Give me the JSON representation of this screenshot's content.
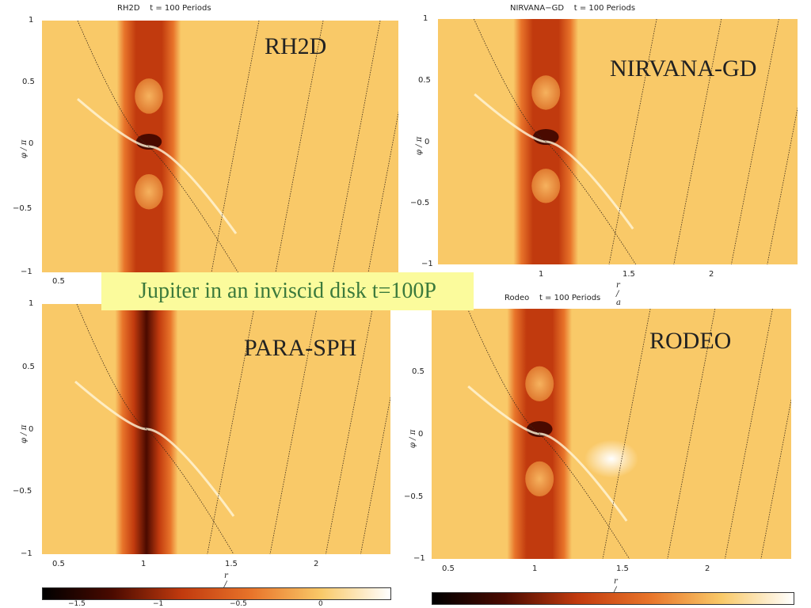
{
  "banner": "Jupiter in an inviscid disk t=100P",
  "panels": [
    {
      "id": "rh2d",
      "title": "RH2D    t = 100 Periods",
      "code_label": "RH2D",
      "yticks": [
        "1",
        "0.5",
        "0",
        "−0.5",
        "−1"
      ],
      "ylabel": "φ / π",
      "xticks": [
        "0.5"
      ],
      "xlabel": "",
      "features": {
        "planet_blobs": true,
        "white_spot": false
      }
    },
    {
      "id": "nirvana",
      "title": "NIRVANA−GD    t = 100 Periods",
      "code_label": "NIRVANA-GD",
      "yticks": [
        "1",
        "0.5",
        "0",
        "−0.5",
        "−1"
      ],
      "ylabel": "φ / π",
      "xticks": [
        "1",
        "1.5",
        "2"
      ],
      "xlabel": "r / a",
      "features": {
        "planet_blobs": true,
        "white_spot": false
      }
    },
    {
      "id": "parasph",
      "title": "",
      "code_label": "PARA-SPH",
      "yticks": [
        "1",
        "0.5",
        "0",
        "−0.5",
        "−1"
      ],
      "ylabel": "φ / π",
      "xticks": [
        "0.5",
        "1",
        "1.5",
        "2"
      ],
      "xlabel": "r / a",
      "features": {
        "planet_blobs": false,
        "white_spot": false
      }
    },
    {
      "id": "rodeo",
      "title": "Rodeo    t = 100 Periods",
      "code_label": "RODEO",
      "yticks": [
        "0.5",
        "0",
        "−0.5",
        "−1"
      ],
      "ylabel": "φ / π",
      "xticks": [
        "0.5",
        "1",
        "1.5",
        "2"
      ],
      "xlabel": "r / a",
      "features": {
        "planet_blobs": true,
        "white_spot": true
      }
    }
  ],
  "colorbars": [
    {
      "ticks": [
        "−1.5",
        "−1",
        "−0.5",
        "0"
      ]
    },
    {
      "ticks": []
    }
  ],
  "colors": {
    "background": "#f9c968",
    "gap_dark": "#4a0a00",
    "gap_mid": "#c13a0e",
    "gap_light": "#e8742a",
    "highlight": "#fff6da"
  }
}
